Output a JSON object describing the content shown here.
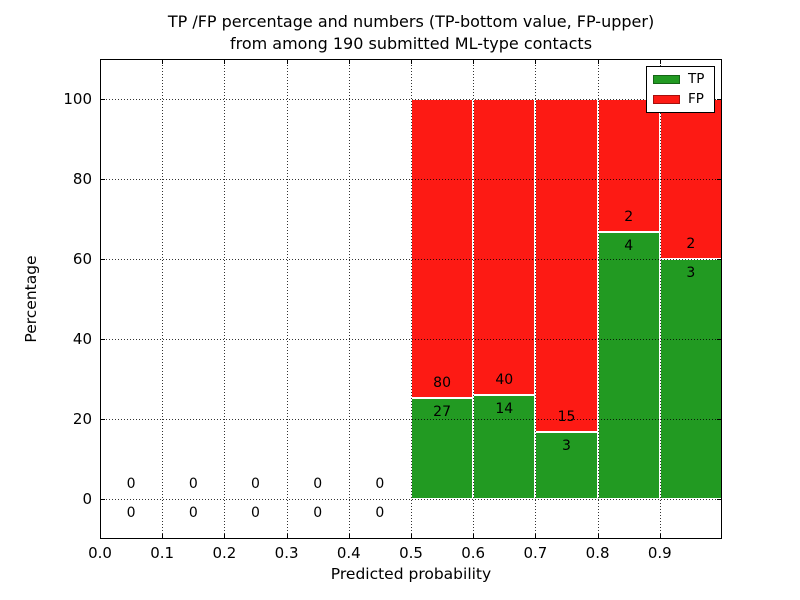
{
  "figure": {
    "title_line1": "TP /FP percentage and numbers (TP-bottom value, FP-upper)",
    "title_line2": "from among 190 submitted ML-type contacts"
  },
  "chart_data": {
    "type": "bar",
    "stacked": true,
    "title": "TP /FP percentage and numbers (TP-bottom value, FP-upper)\nfrom among 190 submitted ML-type contacts",
    "xlabel": "Predicted probability",
    "ylabel": "Percentage",
    "xlim": [
      0.0,
      1.0
    ],
    "ylim": [
      -10,
      110
    ],
    "xticks": [
      0.0,
      0.1,
      0.2,
      0.3,
      0.4,
      0.5,
      0.6,
      0.7,
      0.8,
      0.9
    ],
    "xtick_labels": [
      "0.0",
      "0.1",
      "0.2",
      "0.3",
      "0.4",
      "0.5",
      "0.6",
      "0.7",
      "0.8",
      "0.9"
    ],
    "yticks": [
      0,
      20,
      40,
      60,
      80,
      100
    ],
    "ytick_labels": [
      "0",
      "20",
      "40",
      "60",
      "80",
      "100"
    ],
    "grid": "dotted",
    "total_contacts": 190,
    "legend": {
      "position": "upper-right",
      "entries": [
        {
          "label": "TP",
          "color": "#229a22"
        },
        {
          "label": "FP",
          "color": "#fd1a14"
        }
      ]
    },
    "bins": [
      {
        "x_start": 0.0,
        "x_end": 0.1,
        "tp_count": 0,
        "fp_count": 0,
        "tp_pct": 0,
        "fp_pct": 0
      },
      {
        "x_start": 0.1,
        "x_end": 0.2,
        "tp_count": 0,
        "fp_count": 0,
        "tp_pct": 0,
        "fp_pct": 0
      },
      {
        "x_start": 0.2,
        "x_end": 0.3,
        "tp_count": 0,
        "fp_count": 0,
        "tp_pct": 0,
        "fp_pct": 0
      },
      {
        "x_start": 0.3,
        "x_end": 0.4,
        "tp_count": 0,
        "fp_count": 0,
        "tp_pct": 0,
        "fp_pct": 0
      },
      {
        "x_start": 0.4,
        "x_end": 0.5,
        "tp_count": 0,
        "fp_count": 0,
        "tp_pct": 0,
        "fp_pct": 0
      },
      {
        "x_start": 0.5,
        "x_end": 0.6,
        "tp_count": 27,
        "fp_count": 80,
        "tp_pct": 25.23,
        "fp_pct": 74.77
      },
      {
        "x_start": 0.6,
        "x_end": 0.7,
        "tp_count": 14,
        "fp_count": 40,
        "tp_pct": 25.93,
        "fp_pct": 74.07
      },
      {
        "x_start": 0.7,
        "x_end": 0.8,
        "tp_count": 3,
        "fp_count": 15,
        "tp_pct": 16.67,
        "fp_pct": 83.33
      },
      {
        "x_start": 0.8,
        "x_end": 0.9,
        "tp_count": 4,
        "fp_count": 2,
        "tp_pct": 66.67,
        "fp_pct": 33.33
      },
      {
        "x_start": 0.9,
        "x_end": 1.0,
        "tp_count": 3,
        "fp_count": 2,
        "tp_pct": 60.0,
        "fp_pct": 40.0
      }
    ],
    "colors": {
      "tp": "#229a22",
      "fp": "#fd1a14",
      "bar_edge": "#ffffff",
      "grid": "#000000",
      "frame": "#000000",
      "background": "#ffffff"
    }
  }
}
